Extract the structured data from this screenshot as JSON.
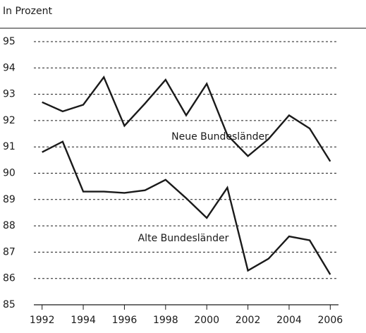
{
  "chart_data": {
    "type": "line",
    "title": "In Prozent",
    "annotations": [
      "Neue Bundesländer",
      "Alte Bundesländer"
    ],
    "x": [
      1992,
      1993,
      1994,
      1995,
      1996,
      1997,
      1998,
      1999,
      2000,
      2001,
      2002,
      2003,
      2004,
      2005,
      2006
    ],
    "series": [
      {
        "name": "Neue Bundesländer",
        "color": "#1a1a1a",
        "values": [
          92.7,
          92.35,
          92.6,
          93.65,
          91.8,
          92.65,
          93.55,
          92.2,
          93.4,
          91.45,
          90.65,
          91.3,
          92.2,
          91.7,
          90.45
        ]
      },
      {
        "name": "Alte Bundesländer",
        "color": "#1a1a1a",
        "values": [
          90.8,
          91.2,
          89.3,
          89.3,
          89.25,
          89.35,
          89.75,
          89.05,
          88.3,
          89.45,
          86.3,
          86.75,
          87.6,
          87.45,
          86.15
        ]
      }
    ],
    "xlim": [
      1991.6,
      2006.4
    ],
    "xticks": [
      1992,
      1994,
      1996,
      1998,
      2000,
      2002,
      2004,
      2006
    ],
    "ylim": [
      85,
      95
    ],
    "yticks": [
      85,
      86,
      87,
      88,
      89,
      90,
      91,
      92,
      93,
      94,
      95
    ],
    "grid": true
  }
}
